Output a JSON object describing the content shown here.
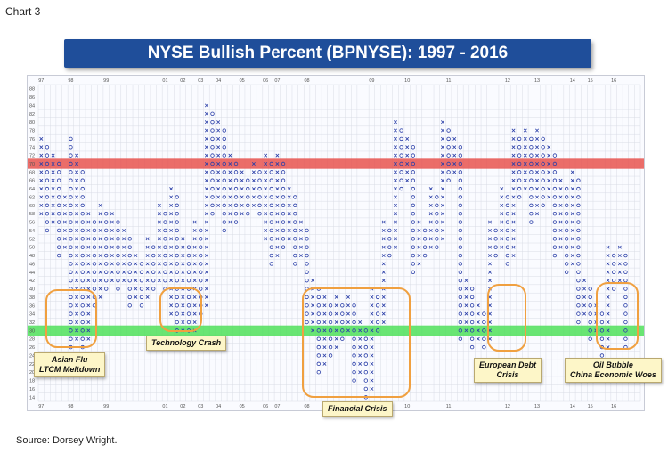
{
  "page": {
    "chart_label": "Chart 3",
    "source": "Source: Dorsey Wright."
  },
  "colors": {
    "title_bg": "#1f4e9a",
    "x_mark": "#2b3fa8",
    "o_mark": "#2b3fa8",
    "red_band": "#e8534f",
    "green_band": "#4fe05a",
    "circle": "#f0a040",
    "callout_bg": "#fdf6c8"
  },
  "chart_data": {
    "type": "point-and-figure",
    "title": "NYSE Bullish Percent (BPNYSE): 1997 - 2016",
    "y_range": [
      14,
      88
    ],
    "y_ticks": [
      88,
      86,
      84,
      82,
      80,
      78,
      76,
      74,
      72,
      70,
      68,
      66,
      64,
      62,
      60,
      58,
      56,
      54,
      52,
      50,
      48,
      46,
      44,
      42,
      40,
      38,
      36,
      34,
      32,
      30,
      28,
      26,
      24,
      22,
      20,
      18,
      16,
      14
    ],
    "x_year_labels": [
      {
        "label": "97",
        "col": 0
      },
      {
        "label": "98",
        "col": 5
      },
      {
        "label": "99",
        "col": 11
      },
      {
        "label": "01",
        "col": 21
      },
      {
        "label": "02",
        "col": 24
      },
      {
        "label": "03",
        "col": 27
      },
      {
        "label": "04",
        "col": 30
      },
      {
        "label": "05",
        "col": 34
      },
      {
        "label": "06",
        "col": 38
      },
      {
        "label": "07",
        "col": 40
      },
      {
        "label": "08",
        "col": 45
      },
      {
        "label": "09",
        "col": 56
      },
      {
        "label": "10",
        "col": 62
      },
      {
        "label": "11",
        "col": 69
      },
      {
        "label": "12",
        "col": 79
      },
      {
        "label": "13",
        "col": 84
      },
      {
        "label": "14",
        "col": 90
      },
      {
        "label": "15",
        "col": 93
      },
      {
        "label": "16",
        "col": 97
      }
    ],
    "overbought_level": 70,
    "oversold_level": 30,
    "columns": [
      {
        "type": "X",
        "low": 58,
        "high": 76
      },
      {
        "type": "O",
        "low": 54,
        "high": 74
      },
      {
        "type": "X",
        "low": 56,
        "high": 72
      },
      {
        "type": "O",
        "low": 48,
        "high": 70
      },
      {
        "type": "X",
        "low": 50,
        "high": 62
      },
      {
        "type": "O",
        "low": 26,
        "high": 76
      },
      {
        "type": "X",
        "low": 28,
        "high": 72
      },
      {
        "type": "O",
        "low": 26,
        "high": 68
      },
      {
        "type": "X",
        "low": 28,
        "high": 58
      },
      {
        "type": "O",
        "low": 36,
        "high": 56
      },
      {
        "type": "X",
        "low": 38,
        "high": 60
      },
      {
        "type": "O",
        "low": 40,
        "high": 58
      },
      {
        "type": "X",
        "low": 42,
        "high": 58
      },
      {
        "type": "O",
        "low": 40,
        "high": 56
      },
      {
        "type": "X",
        "low": 42,
        "high": 54
      },
      {
        "type": "O",
        "low": 36,
        "high": 52
      },
      {
        "type": "X",
        "low": 38,
        "high": 48
      },
      {
        "type": "O",
        "low": 36,
        "high": 46
      },
      {
        "type": "X",
        "low": 38,
        "high": 52
      },
      {
        "type": "O",
        "low": 40,
        "high": 50
      },
      {
        "type": "X",
        "low": 42,
        "high": 60
      },
      {
        "type": "O",
        "low": 40,
        "high": 58
      },
      {
        "type": "X",
        "low": 34,
        "high": 64
      },
      {
        "type": "O",
        "low": 26,
        "high": 62
      },
      {
        "type": "X",
        "low": 28,
        "high": 52
      },
      {
        "type": "O",
        "low": 26,
        "high": 50
      },
      {
        "type": "X",
        "low": 30,
        "high": 56
      },
      {
        "type": "O",
        "low": 34,
        "high": 54
      },
      {
        "type": "X",
        "low": 36,
        "high": 84
      },
      {
        "type": "O",
        "low": 58,
        "high": 82
      },
      {
        "type": "X",
        "low": 60,
        "high": 80
      },
      {
        "type": "O",
        "low": 54,
        "high": 78
      },
      {
        "type": "X",
        "low": 56,
        "high": 72
      },
      {
        "type": "O",
        "low": 56,
        "high": 70
      },
      {
        "type": "X",
        "low": 58,
        "high": 68
      },
      {
        "type": "O",
        "low": 58,
        "high": 66
      },
      {
        "type": "X",
        "low": 60,
        "high": 70
      },
      {
        "type": "O",
        "low": 58,
        "high": 68
      },
      {
        "type": "X",
        "low": 52,
        "high": 72
      },
      {
        "type": "O",
        "low": 46,
        "high": 70
      },
      {
        "type": "X",
        "low": 48,
        "high": 72
      },
      {
        "type": "O",
        "low": 50,
        "high": 70
      },
      {
        "type": "X",
        "low": 52,
        "high": 64
      },
      {
        "type": "O",
        "low": 46,
        "high": 62
      },
      {
        "type": "X",
        "low": 48,
        "high": 56
      },
      {
        "type": "O",
        "low": 32,
        "high": 54
      },
      {
        "type": "X",
        "low": 30,
        "high": 42
      },
      {
        "type": "O",
        "low": 20,
        "high": 40
      },
      {
        "type": "X",
        "low": 22,
        "high": 38
      },
      {
        "type": "O",
        "low": 24,
        "high": 36
      },
      {
        "type": "X",
        "low": 26,
        "high": 38
      },
      {
        "type": "O",
        "low": 28,
        "high": 36
      },
      {
        "type": "X",
        "low": 30,
        "high": 38
      },
      {
        "type": "O",
        "low": 18,
        "high": 36
      },
      {
        "type": "X",
        "low": 20,
        "high": 32
      },
      {
        "type": "O",
        "low": 14,
        "high": 30
      },
      {
        "type": "X",
        "low": 16,
        "high": 40
      },
      {
        "type": "O",
        "low": 30,
        "high": 38
      },
      {
        "type": "X",
        "low": 32,
        "high": 56
      },
      {
        "type": "O",
        "low": 48,
        "high": 54
      },
      {
        "type": "X",
        "low": 50,
        "high": 80
      },
      {
        "type": "O",
        "low": 64,
        "high": 78
      },
      {
        "type": "X",
        "low": 66,
        "high": 76
      },
      {
        "type": "O",
        "low": 44,
        "high": 74
      },
      {
        "type": "X",
        "low": 46,
        "high": 56
      },
      {
        "type": "O",
        "low": 48,
        "high": 54
      },
      {
        "type": "X",
        "low": 50,
        "high": 64
      },
      {
        "type": "O",
        "low": 50,
        "high": 62
      },
      {
        "type": "X",
        "low": 52,
        "high": 80
      },
      {
        "type": "O",
        "low": 66,
        "high": 78
      },
      {
        "type": "X",
        "low": 68,
        "high": 76
      },
      {
        "type": "O",
        "low": 28,
        "high": 74
      },
      {
        "type": "X",
        "low": 30,
        "high": 42
      },
      {
        "type": "O",
        "low": 26,
        "high": 40
      },
      {
        "type": "X",
        "low": 28,
        "high": 36
      },
      {
        "type": "O",
        "low": 26,
        "high": 34
      },
      {
        "type": "X",
        "low": 28,
        "high": 56
      },
      {
        "type": "O",
        "low": 48,
        "high": 54
      },
      {
        "type": "X",
        "low": 50,
        "high": 64
      },
      {
        "type": "O",
        "low": 46,
        "high": 62
      },
      {
        "type": "X",
        "low": 48,
        "high": 78
      },
      {
        "type": "O",
        "low": 62,
        "high": 76
      },
      {
        "type": "X",
        "low": 64,
        "high": 78
      },
      {
        "type": "O",
        "low": 56,
        "high": 76
      },
      {
        "type": "X",
        "low": 58,
        "high": 78
      },
      {
        "type": "O",
        "low": 60,
        "high": 76
      },
      {
        "type": "X",
        "low": 62,
        "high": 74
      },
      {
        "type": "O",
        "low": 48,
        "high": 72
      },
      {
        "type": "X",
        "low": 50,
        "high": 66
      },
      {
        "type": "O",
        "low": 44,
        "high": 64
      },
      {
        "type": "X",
        "low": 46,
        "high": 68
      },
      {
        "type": "O",
        "low": 32,
        "high": 66
      },
      {
        "type": "X",
        "low": 34,
        "high": 42
      },
      {
        "type": "O",
        "low": 28,
        "high": 40
      },
      {
        "type": "X",
        "low": 30,
        "high": 36
      },
      {
        "type": "O",
        "low": 24,
        "high": 34
      },
      {
        "type": "X",
        "low": 26,
        "high": 50
      },
      {
        "type": "O",
        "low": 40,
        "high": 48
      },
      {
        "type": "X",
        "low": 42,
        "high": 50
      },
      {
        "type": "O",
        "low": 26,
        "high": 48
      }
    ],
    "annotations": [
      {
        "lines": [
          "Asian Flu",
          "LTCM Meltdown"
        ]
      },
      {
        "lines": [
          "Technology Crash"
        ]
      },
      {
        "lines": [
          "Financial Crisis"
        ]
      },
      {
        "lines": [
          "European Debt",
          "Crisis"
        ]
      },
      {
        "lines": [
          "Oil Bubble",
          "China Economic Woes"
        ]
      }
    ]
  }
}
